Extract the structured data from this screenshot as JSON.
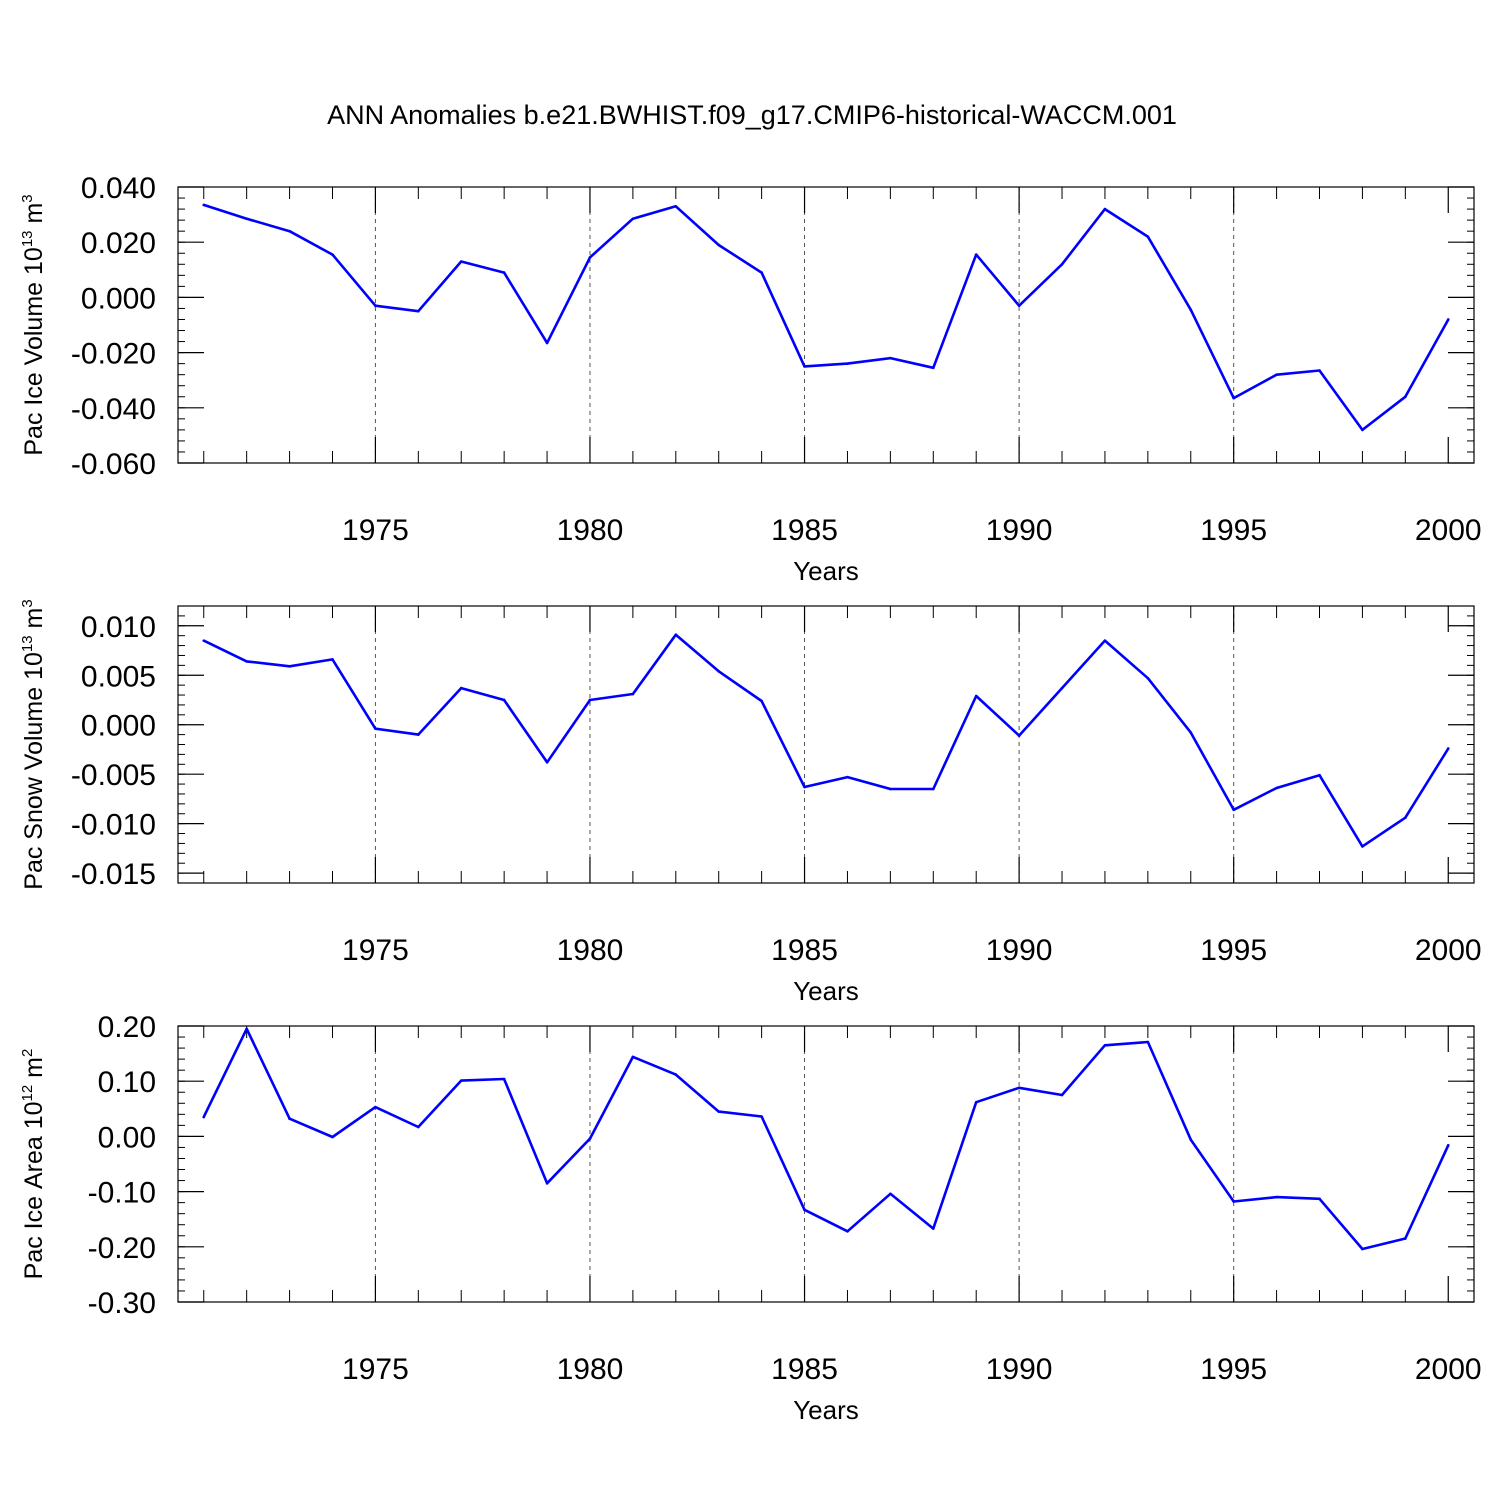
{
  "title": "ANN Anomalies b.e21.BWHIST.f09_g17.CMIP6-historical-WACCM.001",
  "colors": {
    "line": "#0000ff",
    "axis": "#000000",
    "refline": "#555555"
  },
  "chart_data": [
    {
      "type": "line",
      "ylabel": {
        "base": "Pac Ice Volume 10",
        "exp": "13",
        "unit": " m",
        "unit_exp": "3"
      },
      "xlabel": "Years",
      "xlim": [
        1970.4,
        2000.6
      ],
      "ylim": [
        -0.06,
        0.04
      ],
      "yticks": [
        -0.06,
        -0.04,
        -0.02,
        0.0,
        0.02,
        0.04
      ],
      "ytick_labels": [
        "-0.060",
        "-0.040",
        "-0.020",
        "0.000",
        "0.020",
        "0.040"
      ],
      "xticks": [
        1975,
        1980,
        1985,
        1990,
        1995,
        2000
      ],
      "xtick_labels": [
        "1975",
        "1980",
        "1985",
        "1990",
        "1995",
        "2000"
      ],
      "ref_lines_x": [
        1975,
        1980,
        1985,
        1990,
        1995
      ],
      "grid": false,
      "x": [
        1971,
        1972,
        1973,
        1974,
        1975,
        1976,
        1977,
        1978,
        1979,
        1980,
        1981,
        1982,
        1983,
        1984,
        1985,
        1986,
        1987,
        1988,
        1989,
        1990,
        1991,
        1992,
        1993,
        1994,
        1995,
        1996,
        1997,
        1998,
        1999,
        2000
      ],
      "values": [
        0.0335,
        0.0285,
        0.024,
        0.0155,
        -0.003,
        -0.005,
        0.013,
        0.009,
        -0.0165,
        0.0145,
        0.0285,
        0.033,
        0.019,
        0.009,
        -0.025,
        -0.024,
        -0.022,
        -0.0255,
        0.0155,
        -0.003,
        0.012,
        0.032,
        0.022,
        -0.0045,
        -0.0365,
        -0.028,
        -0.0265,
        -0.048,
        -0.036,
        -0.008
      ]
    },
    {
      "type": "line",
      "ylabel": {
        "base": "Pac Snow Volume 10",
        "exp": "13",
        "unit": " m",
        "unit_exp": "3"
      },
      "xlabel": "Years",
      "xlim": [
        1970.4,
        2000.6
      ],
      "ylim": [
        -0.016,
        0.012
      ],
      "yticks": [
        -0.015,
        -0.01,
        -0.005,
        0.0,
        0.005,
        0.01
      ],
      "ytick_labels": [
        "-0.015",
        "-0.010",
        "-0.005",
        "0.000",
        "0.005",
        "0.010"
      ],
      "xticks": [
        1975,
        1980,
        1985,
        1990,
        1995,
        2000
      ],
      "xtick_labels": [
        "1975",
        "1980",
        "1985",
        "1990",
        "1995",
        "2000"
      ],
      "ref_lines_x": [
        1975,
        1980,
        1985,
        1990,
        1995
      ],
      "grid": false,
      "x": [
        1971,
        1972,
        1973,
        1974,
        1975,
        1976,
        1977,
        1978,
        1979,
        1980,
        1981,
        1982,
        1983,
        1984,
        1985,
        1986,
        1987,
        1988,
        1989,
        1990,
        1991,
        1992,
        1993,
        1994,
        1995,
        1996,
        1997,
        1998,
        1999,
        2000
      ],
      "values": [
        0.0085,
        0.0064,
        0.0059,
        0.0066,
        -0.0004,
        -0.001,
        0.0037,
        0.0025,
        -0.0038,
        0.0025,
        0.0031,
        0.0091,
        0.0054,
        0.0024,
        -0.0063,
        -0.0053,
        -0.0065,
        -0.0065,
        0.0029,
        -0.0011,
        0.0037,
        0.0085,
        0.0047,
        -0.0008,
        -0.0086,
        -0.0064,
        -0.0051,
        -0.0123,
        -0.0094,
        -0.0024
      ]
    },
    {
      "type": "line",
      "ylabel": {
        "base": "Pac Ice Area 10",
        "exp": "12",
        "unit": " m",
        "unit_exp": "2"
      },
      "xlabel": "Years",
      "xlim": [
        1970.4,
        2000.6
      ],
      "ylim": [
        -0.3,
        0.2
      ],
      "yticks": [
        -0.3,
        -0.2,
        -0.1,
        0.0,
        0.1,
        0.2
      ],
      "ytick_labels": [
        "-0.30",
        "-0.20",
        "-0.10",
        "0.00",
        "0.10",
        "0.20"
      ],
      "xticks": [
        1975,
        1980,
        1985,
        1990,
        1995,
        2000
      ],
      "xtick_labels": [
        "1975",
        "1980",
        "1985",
        "1990",
        "1995",
        "2000"
      ],
      "ref_lines_x": [
        1975,
        1980,
        1985,
        1990,
        1995
      ],
      "grid": false,
      "x": [
        1971,
        1972,
        1973,
        1974,
        1975,
        1976,
        1977,
        1978,
        1979,
        1980,
        1981,
        1982,
        1983,
        1984,
        1985,
        1986,
        1987,
        1988,
        1989,
        1990,
        1991,
        1992,
        1993,
        1994,
        1995,
        1996,
        1997,
        1998,
        1999,
        2000
      ],
      "values": [
        0.035,
        0.195,
        0.032,
        -0.001,
        0.053,
        0.017,
        0.101,
        0.104,
        -0.085,
        -0.004,
        0.144,
        0.112,
        0.045,
        0.036,
        -0.133,
        -0.172,
        -0.104,
        -0.167,
        0.062,
        0.088,
        0.075,
        0.165,
        0.171,
        -0.006,
        -0.118,
        -0.11,
        -0.113,
        -0.204,
        -0.185,
        -0.016
      ]
    }
  ]
}
